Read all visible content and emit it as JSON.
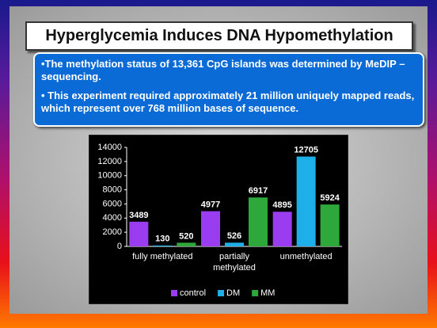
{
  "title": "Hyperglycemia Induces DNA Hypomethylation",
  "bullets": [
    "•The methylation status of 13,361 CpG islands was determined by MeDIP – sequencing.",
    "• This experiment required approximately 21 million uniquely mapped reads, which represent over 768 million bases of sequence."
  ],
  "chart_data": {
    "type": "bar",
    "categories": [
      "fully methylated",
      "partially methylated",
      "unmethylated"
    ],
    "series": [
      {
        "name": "control",
        "color": "#9a3cf0",
        "values": [
          3489,
          4977,
          4895
        ]
      },
      {
        "name": "DM",
        "color": "#1eaee8",
        "values": [
          130,
          526,
          12705
        ]
      },
      {
        "name": "MM",
        "color": "#2ea83a",
        "values": [
          520,
          6917,
          5924
        ]
      }
    ],
    "ylim": [
      0,
      14000
    ],
    "yticks": [
      0,
      2000,
      4000,
      6000,
      8000,
      10000,
      12000,
      14000
    ],
    "legend": "bottom"
  }
}
